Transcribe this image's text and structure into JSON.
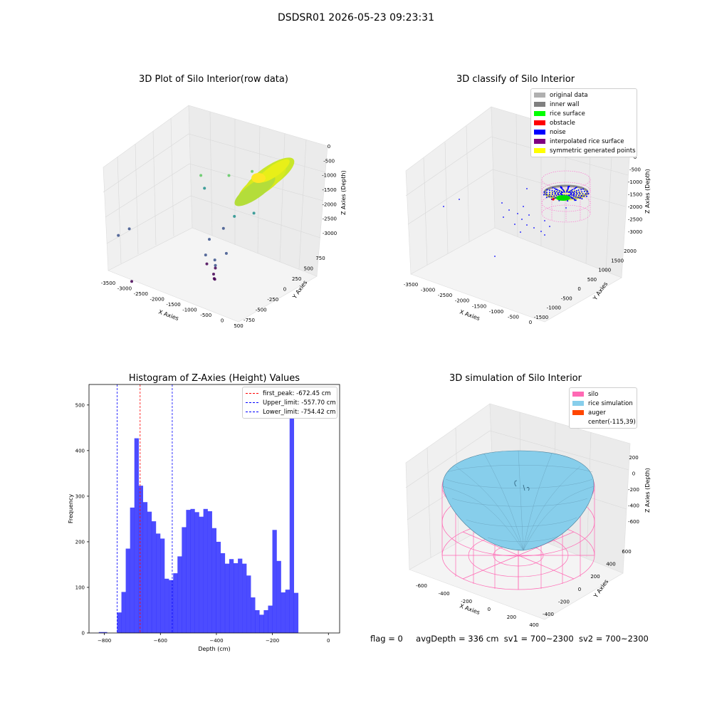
{
  "suptitle": "DSDSR01 2026-05-23 09:23:31",
  "status": {
    "flag": "flag = 0",
    "avg": "avgDepth = 336 cm",
    "sv1": "sv1 = 700~2300",
    "sv2": "sv2 = 700~2300"
  },
  "chart_data": [
    {
      "type": "scatter",
      "title": "3D Plot of Silo Interior(row data)",
      "xlabel": "X Axies",
      "ylabel": "Y Axies",
      "zlabel": "Z Axies (Depth)",
      "xticks": [
        "-3500",
        "-3000",
        "-2500",
        "-2000",
        "-1500",
        "-1000",
        "-500",
        "0",
        "500"
      ],
      "yticks": [
        "-750",
        "-500",
        "-250",
        "0",
        "250",
        "500",
        "750"
      ],
      "zticks": [
        "0",
        "-500",
        "-1000",
        "-1500",
        "-2000",
        "-2500",
        "-3000"
      ],
      "xlim": [
        -3600,
        600
      ],
      "ylim": [
        -800,
        800
      ],
      "zlim": [
        -3200,
        100
      ],
      "colormap": [
        "#440154",
        "#3b528b",
        "#21918c",
        "#5ec962",
        "#fde725"
      ],
      "points": [
        {
          "x": -3500,
          "y": -700,
          "z": -2200
        },
        {
          "x": -3300,
          "y": -600,
          "z": -2050
        },
        {
          "x": -2400,
          "y": 300,
          "z": -1100
        },
        {
          "x": -2200,
          "y": 250,
          "z": -1350
        },
        {
          "x": -1800,
          "y": 100,
          "z": -2500
        },
        {
          "x": -1600,
          "y": -100,
          "z": -2700
        },
        {
          "x": -1400,
          "y": -200,
          "z": -2800
        },
        {
          "x": -1300,
          "y": -100,
          "z": -2750
        },
        {
          "x": -1200,
          "y": -150,
          "z": -2900
        },
        {
          "x": -1100,
          "y": -250,
          "z": -2950
        },
        {
          "x": -1000,
          "y": -300,
          "z": -3000
        },
        {
          "x": -900,
          "y": -350,
          "z": -2950
        },
        {
          "x": -1500,
          "y": 200,
          "z": -2200
        },
        {
          "x": -1300,
          "y": 300,
          "z": -1900
        },
        {
          "x": -800,
          "y": -400,
          "z": -2500
        },
        {
          "x": -600,
          "y": -300,
          "z": -2200
        },
        {
          "x": -1800,
          "y": 500,
          "z": -1100
        },
        {
          "x": -1200,
          "y": 600,
          "z": -900
        },
        {
          "x": -500,
          "y": 200,
          "z": -1500
        },
        {
          "x": -2900,
          "y": -800,
          "z": -3200
        }
      ]
    },
    {
      "type": "scatter",
      "title": "3D classify of Silo Interior",
      "xlabel": "X Axies",
      "ylabel": "Y Axies",
      "zlabel": "Z Axies (Depth)",
      "xticks": [
        "-3500",
        "-3000",
        "-2500",
        "-2000",
        "-1500",
        "-1000",
        "-500",
        "0"
      ],
      "yticks": [
        "-1500",
        "-1000",
        "-500",
        "0",
        "500",
        "1000",
        "1500",
        "2000"
      ],
      "zticks": [
        "0",
        "-500",
        "-1000",
        "-1500",
        "-2000",
        "-2500",
        "-3000"
      ],
      "legend": [
        {
          "label": "original data",
          "color": "#b0b0b0"
        },
        {
          "label": "inner wall",
          "color": "#808080"
        },
        {
          "label": "rice surface",
          "color": "#00ff00"
        },
        {
          "label": "obstacle",
          "color": "#ff0000"
        },
        {
          "label": "noise",
          "color": "#0000ff"
        },
        {
          "label": "interpolated rice surface",
          "color": "#800080"
        },
        {
          "label": "symmetric generated points",
          "color": "#ffff00"
        }
      ]
    },
    {
      "type": "bar",
      "title": "Histogram of Z-Axies (Height) Values",
      "xlabel": "Depth (cm)",
      "ylabel": "Frequency",
      "xlim": [
        -855,
        40
      ],
      "ylim": [
        0,
        545
      ],
      "xticks": [
        -800,
        -600,
        -400,
        -200,
        0
      ],
      "yticks": [
        0,
        100,
        200,
        300,
        400,
        500
      ],
      "bin_start": -770,
      "bin_width": 15.4,
      "values": [
        0,
        45,
        90,
        185,
        275,
        427,
        323,
        287,
        266,
        245,
        218,
        207,
        119,
        116,
        131,
        168,
        232,
        270,
        272,
        265,
        255,
        272,
        267,
        230,
        200,
        175,
        152,
        162,
        153,
        163,
        152,
        126,
        78,
        50,
        40,
        50,
        60,
        226,
        158,
        89,
        95,
        520,
        88
      ],
      "stray_bins": [
        {
          "x": -820,
          "width": 30,
          "value": 2
        }
      ],
      "color": "#0000ff",
      "lines": [
        {
          "label": "first_peak: -672.45 cm",
          "x": -672.45,
          "color": "#ff0000"
        },
        {
          "label": "Upper_limit: -557.70 cm",
          "x": -557.7,
          "color": "#0000ff"
        },
        {
          "label": "Lower_limit: -754.42 cm",
          "x": -754.42,
          "color": "#0000ff"
        }
      ]
    },
    {
      "type": "area",
      "title": "3D simulation of Silo Interior",
      "xlabel": "X Axies",
      "ylabel": "Y Axies",
      "zlabel": "Z Axies (Depth)",
      "xticks": [
        "-600",
        "-400",
        "-200",
        "0",
        "200",
        "400"
      ],
      "yticks": [
        "-400",
        "-200",
        "0",
        "200",
        "400",
        "600"
      ],
      "zticks": [
        "200",
        "0",
        "-200",
        "-400",
        "-600"
      ],
      "legend": [
        {
          "label": "silo",
          "color": "#ff69b4"
        },
        {
          "label": "rice simulation",
          "color": "#87ceeb"
        },
        {
          "label": "auger",
          "color": "#ff4500"
        },
        {
          "label": "center(-115,39)",
          "color": ""
        }
      ]
    }
  ]
}
